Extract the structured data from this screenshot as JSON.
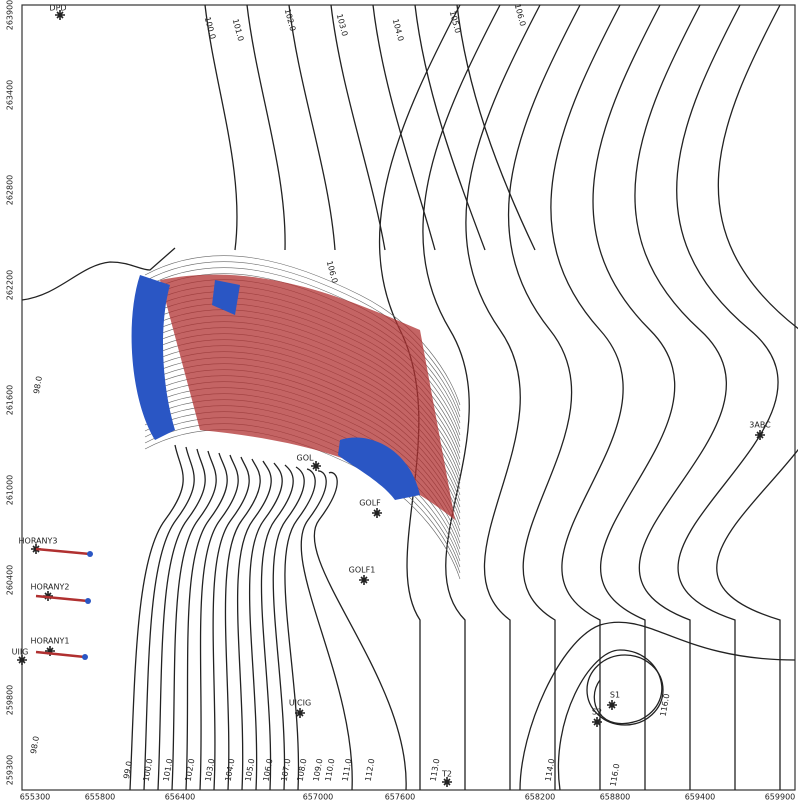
{
  "map": {
    "x_axis_labels": [
      "655300",
      "655800",
      "656400",
      "657000",
      "657600",
      "658200",
      "658800",
      "659400",
      "659900"
    ],
    "y_axis_labels": [
      "263900",
      "263400",
      "262800",
      "262200",
      "261600",
      "261000",
      "260400",
      "259800",
      "259300"
    ],
    "contour_labels": [
      "99.0",
      "100.0",
      "101.0",
      "102.0",
      "103.0",
      "104.0",
      "105.0",
      "106.0",
      "107.0",
      "108.0",
      "109.0",
      "110.0",
      "111.0",
      "112.0",
      "113.0",
      "100.0",
      "101.0",
      "102.0",
      "103.0",
      "104.0",
      "105.0",
      "106.0",
      "106.0",
      "98.0",
      "98.0",
      "114.0",
      "116.0",
      "116.0"
    ],
    "wells": [
      "DPD",
      "3ABC",
      "GOL",
      "GOLF",
      "GOLF1",
      "S1",
      "S2",
      "UICIG",
      "UIIG",
      "HORANY3",
      "HORANY2",
      "HORANY1",
      "T2"
    ]
  }
}
